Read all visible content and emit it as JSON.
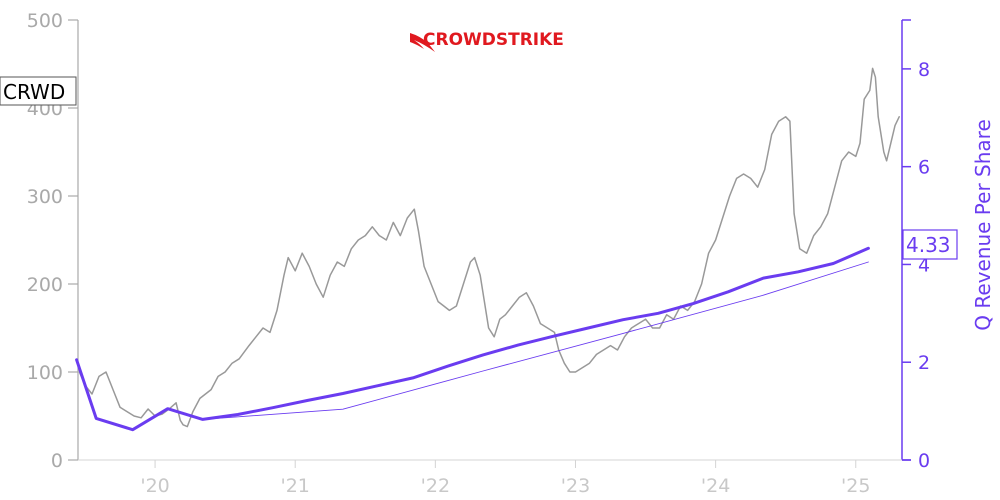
{
  "logo_text": "CROWDSTRIKE",
  "ticker": "CRWD",
  "colors": {
    "price": "#999999",
    "revenue": "#6a3cf0",
    "axis_left": "#a9a9a9",
    "logo": "#e0191f"
  },
  "chart_data": {
    "type": "line",
    "x_domain": [
      2019.45,
      2025.33
    ],
    "x_ticks": [
      2020,
      2021,
      2022,
      2023,
      2024,
      2025
    ],
    "x_tick_labels": [
      "'20",
      "'21",
      "'22",
      "'23",
      "'24",
      "'25"
    ],
    "y_left": {
      "range": [
        0,
        500
      ],
      "ticks": [
        0,
        100,
        200,
        300,
        400,
        500
      ],
      "tick_labels": [
        "0",
        "100",
        "200",
        "300",
        "400",
        "500"
      ]
    },
    "y_right": {
      "label": "Q Revenue Per Share",
      "range": [
        0,
        9
      ],
      "ticks": [
        0,
        2,
        4,
        6,
        8
      ],
      "tick_labels": [
        "0",
        "2",
        "4",
        "6",
        "8"
      ]
    },
    "current_value_label": "4.33",
    "series": [
      {
        "axis": "left",
        "style": "price",
        "points": [
          [
            2019.46,
            100
          ],
          [
            2019.5,
            85
          ],
          [
            2019.55,
            75
          ],
          [
            2019.6,
            95
          ],
          [
            2019.65,
            100
          ],
          [
            2019.7,
            80
          ],
          [
            2019.75,
            60
          ],
          [
            2019.8,
            55
          ],
          [
            2019.85,
            50
          ],
          [
            2019.9,
            48
          ],
          [
            2019.95,
            58
          ],
          [
            2020.0,
            50
          ],
          [
            2020.05,
            52
          ],
          [
            2020.1,
            58
          ],
          [
            2020.15,
            65
          ],
          [
            2020.18,
            45
          ],
          [
            2020.2,
            40
          ],
          [
            2020.23,
            38
          ],
          [
            2020.27,
            55
          ],
          [
            2020.32,
            70
          ],
          [
            2020.4,
            80
          ],
          [
            2020.45,
            95
          ],
          [
            2020.5,
            100
          ],
          [
            2020.55,
            110
          ],
          [
            2020.6,
            115
          ],
          [
            2020.67,
            130
          ],
          [
            2020.72,
            140
          ],
          [
            2020.77,
            150
          ],
          [
            2020.82,
            145
          ],
          [
            2020.87,
            170
          ],
          [
            2020.92,
            210
          ],
          [
            2020.95,
            230
          ],
          [
            2021.0,
            215
          ],
          [
            2021.05,
            235
          ],
          [
            2021.1,
            220
          ],
          [
            2021.15,
            200
          ],
          [
            2021.2,
            185
          ],
          [
            2021.25,
            210
          ],
          [
            2021.3,
            225
          ],
          [
            2021.35,
            220
          ],
          [
            2021.4,
            240
          ],
          [
            2021.45,
            250
          ],
          [
            2021.5,
            255
          ],
          [
            2021.55,
            265
          ],
          [
            2021.6,
            255
          ],
          [
            2021.65,
            250
          ],
          [
            2021.7,
            270
          ],
          [
            2021.75,
            255
          ],
          [
            2021.8,
            275
          ],
          [
            2021.85,
            285
          ],
          [
            2021.88,
            260
          ],
          [
            2021.92,
            220
          ],
          [
            2021.97,
            200
          ],
          [
            2022.02,
            180
          ],
          [
            2022.06,
            175
          ],
          [
            2022.1,
            170
          ],
          [
            2022.15,
            175
          ],
          [
            2022.2,
            200
          ],
          [
            2022.25,
            225
          ],
          [
            2022.28,
            230
          ],
          [
            2022.32,
            210
          ],
          [
            2022.35,
            180
          ],
          [
            2022.38,
            150
          ],
          [
            2022.42,
            140
          ],
          [
            2022.46,
            160
          ],
          [
            2022.5,
            165
          ],
          [
            2022.55,
            175
          ],
          [
            2022.6,
            185
          ],
          [
            2022.65,
            190
          ],
          [
            2022.7,
            175
          ],
          [
            2022.75,
            155
          ],
          [
            2022.8,
            150
          ],
          [
            2022.85,
            145
          ],
          [
            2022.88,
            125
          ],
          [
            2022.92,
            110
          ],
          [
            2022.96,
            100
          ],
          [
            2023.0,
            100
          ],
          [
            2023.05,
            105
          ],
          [
            2023.1,
            110
          ],
          [
            2023.15,
            120
          ],
          [
            2023.2,
            125
          ],
          [
            2023.25,
            130
          ],
          [
            2023.3,
            125
          ],
          [
            2023.35,
            140
          ],
          [
            2023.4,
            150
          ],
          [
            2023.45,
            155
          ],
          [
            2023.5,
            160
          ],
          [
            2023.55,
            150
          ],
          [
            2023.6,
            150
          ],
          [
            2023.65,
            165
          ],
          [
            2023.7,
            160
          ],
          [
            2023.75,
            175
          ],
          [
            2023.8,
            170
          ],
          [
            2023.85,
            180
          ],
          [
            2023.9,
            200
          ],
          [
            2023.95,
            235
          ],
          [
            2024.0,
            250
          ],
          [
            2024.05,
            275
          ],
          [
            2024.1,
            300
          ],
          [
            2024.15,
            320
          ],
          [
            2024.2,
            325
          ],
          [
            2024.25,
            320
          ],
          [
            2024.3,
            310
          ],
          [
            2024.35,
            330
          ],
          [
            2024.4,
            370
          ],
          [
            2024.45,
            385
          ],
          [
            2024.5,
            390
          ],
          [
            2024.53,
            385
          ],
          [
            2024.56,
            280
          ],
          [
            2024.6,
            240
          ],
          [
            2024.65,
            235
          ],
          [
            2024.7,
            255
          ],
          [
            2024.75,
            265
          ],
          [
            2024.8,
            280
          ],
          [
            2024.85,
            310
          ],
          [
            2024.9,
            340
          ],
          [
            2024.95,
            350
          ],
          [
            2025.0,
            345
          ],
          [
            2025.03,
            360
          ],
          [
            2025.06,
            410
          ],
          [
            2025.1,
            420
          ],
          [
            2025.12,
            445
          ],
          [
            2025.14,
            435
          ],
          [
            2025.16,
            390
          ],
          [
            2025.2,
            350
          ],
          [
            2025.22,
            340
          ],
          [
            2025.25,
            360
          ],
          [
            2025.28,
            380
          ],
          [
            2025.31,
            390
          ]
        ]
      },
      {
        "axis": "right",
        "style": "revenue",
        "points": [
          [
            2019.44,
            2.05
          ],
          [
            2019.58,
            0.85
          ],
          [
            2019.84,
            0.62
          ],
          [
            2020.09,
            1.05
          ],
          [
            2020.34,
            0.83
          ],
          [
            2020.59,
            0.93
          ],
          [
            2020.84,
            1.07
          ],
          [
            2021.09,
            1.22
          ],
          [
            2021.34,
            1.36
          ],
          [
            2021.59,
            1.52
          ],
          [
            2021.84,
            1.68
          ],
          [
            2022.09,
            1.92
          ],
          [
            2022.34,
            2.15
          ],
          [
            2022.59,
            2.35
          ],
          [
            2022.84,
            2.53
          ],
          [
            2023.09,
            2.7
          ],
          [
            2023.34,
            2.87
          ],
          [
            2023.59,
            3.0
          ],
          [
            2023.84,
            3.2
          ],
          [
            2024.09,
            3.44
          ],
          [
            2024.34,
            3.72
          ],
          [
            2024.59,
            3.85
          ],
          [
            2024.84,
            4.02
          ],
          [
            2025.09,
            4.33
          ]
        ]
      },
      {
        "axis": "right",
        "style": "revenue_thin",
        "points": [
          [
            2020.34,
            0.83
          ],
          [
            2021.34,
            1.04
          ],
          [
            2022.34,
            1.82
          ],
          [
            2023.34,
            2.59
          ],
          [
            2024.34,
            3.37
          ],
          [
            2025.09,
            4.05
          ]
        ]
      }
    ]
  }
}
